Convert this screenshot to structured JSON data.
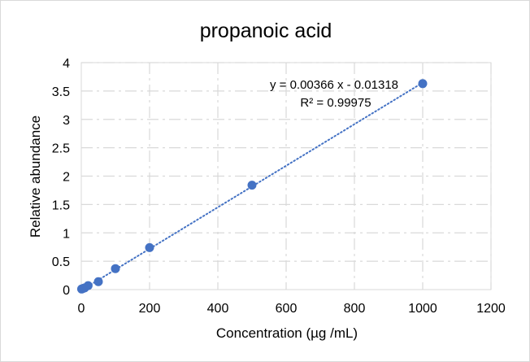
{
  "chart_data": {
    "type": "scatter",
    "title": "propanoic acid",
    "xlabel": "Concentration (µg  /mL)",
    "ylabel": "Relative abundance",
    "xlim": [
      0,
      1200
    ],
    "ylim": [
      0,
      4
    ],
    "x_ticks": [
      "0",
      "200",
      "400",
      "600",
      "800",
      "1000",
      "1200"
    ],
    "y_ticks": [
      "0",
      "0.5",
      "1",
      "1.5",
      "2",
      "2.5",
      "3",
      "3.5",
      "4"
    ],
    "grid": true,
    "series": [
      {
        "points": [
          {
            "x": 1,
            "y": 0.01
          },
          {
            "x": 5,
            "y": 0.02
          },
          {
            "x": 10,
            "y": 0.03
          },
          {
            "x": 20,
            "y": 0.07
          },
          {
            "x": 50,
            "y": 0.14
          },
          {
            "x": 100,
            "y": 0.37
          },
          {
            "x": 200,
            "y": 0.74
          },
          {
            "x": 500,
            "y": 1.84
          },
          {
            "x": 1000,
            "y": 3.63
          }
        ],
        "color": "#4472c4"
      }
    ],
    "trendline": {
      "type": "linear",
      "slope": 0.00366,
      "intercept": -0.01318,
      "style": "dotted",
      "color": "#4472c4",
      "equation_label": "y = 0.00366 x - 0.01318",
      "r2_label": "R² = 0.99975"
    }
  }
}
